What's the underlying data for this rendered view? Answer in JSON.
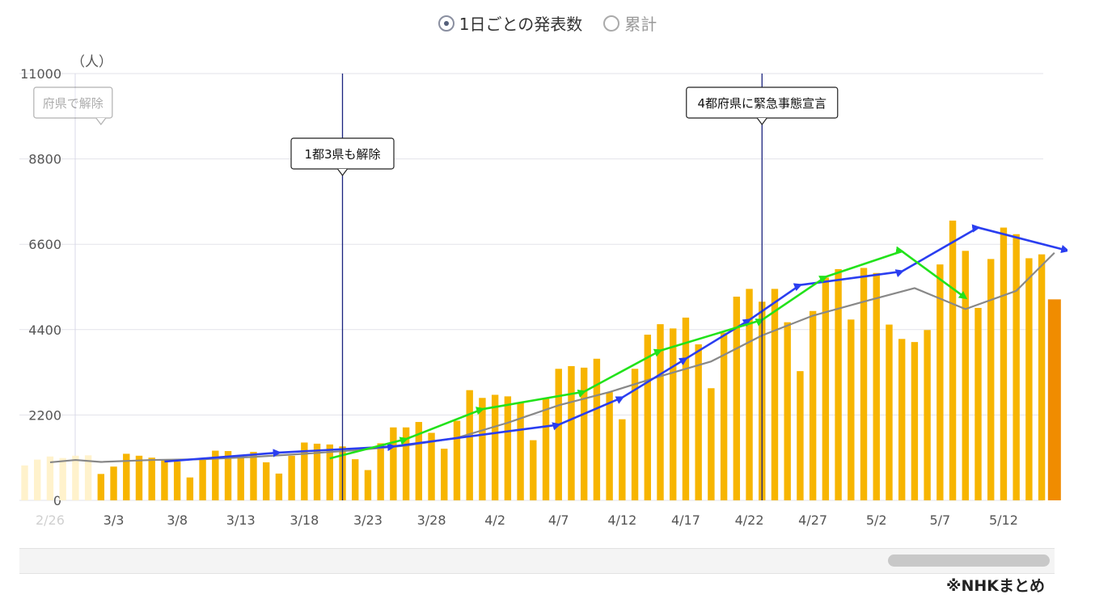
{
  "toggle": {
    "daily_label": "1日ごとの発表数",
    "cumulative_label": "累計",
    "selected": "daily"
  },
  "source_note": "※NHKまとめ",
  "colors": {
    "bar": "#f7b500",
    "bar_faded": "#fff2cc",
    "bar_latest": "#f08c00",
    "average_line": "#888888",
    "blue_trend": "#2a3ef0",
    "green_trend": "#22e21b",
    "event_line": "#1a237e",
    "grid": "#e3e3ea"
  },
  "chart_data": {
    "type": "bar",
    "unit_label": "（人）",
    "ylim": [
      0,
      11000
    ],
    "yticks": [
      0,
      2200,
      4400,
      6600,
      8800,
      11000
    ],
    "start_date": "2/24",
    "xtick_labels": [
      "2/26",
      "3/3",
      "3/8",
      "3/13",
      "3/18",
      "3/23",
      "3/28",
      "4/2",
      "4/7",
      "4/12",
      "4/17",
      "4/22",
      "4/27",
      "5/2",
      "5/7",
      "5/12"
    ],
    "xtick_day_index": [
      2,
      7,
      12,
      17,
      22,
      27,
      32,
      37,
      42,
      47,
      52,
      57,
      62,
      67,
      72,
      77
    ],
    "faded_count": 6,
    "values": [
      900,
      1050,
      1130,
      1090,
      1150,
      1160,
      680,
      870,
      1200,
      1150,
      1100,
      1050,
      1000,
      590,
      1050,
      1280,
      1270,
      1150,
      1250,
      980,
      690,
      1150,
      1490,
      1460,
      1440,
      1390,
      1060,
      780,
      1470,
      1880,
      1880,
      2020,
      1740,
      1330,
      2050,
      2840,
      2640,
      2720,
      2680,
      2510,
      1550,
      2640,
      3390,
      3460,
      3420,
      3650,
      2790,
      2090,
      3390,
      4270,
      4540,
      4430,
      4710,
      4020,
      2890,
      4320,
      5250,
      5450,
      5120,
      5450,
      4590,
      3330,
      4880,
      5740,
      5960,
      4660,
      5990,
      5860,
      4530,
      4160,
      4080,
      4390,
      6080,
      7210,
      6430,
      4960,
      6220,
      7030,
      6860,
      6240,
      6340,
      5180
    ],
    "series": [
      {
        "name": "平均",
        "type": "line",
        "points": [
          [
            2,
            980
          ],
          [
            4,
            1040
          ],
          [
            6,
            990
          ],
          [
            10,
            1040
          ],
          [
            14,
            1060
          ],
          [
            18,
            1120
          ],
          [
            22,
            1200
          ],
          [
            26,
            1290
          ],
          [
            30,
            1410
          ],
          [
            34,
            1610
          ],
          [
            38,
            2000
          ],
          [
            42,
            2450
          ],
          [
            46,
            2790
          ],
          [
            50,
            3200
          ],
          [
            54,
            3580
          ],
          [
            58,
            4250
          ],
          [
            62,
            4760
          ],
          [
            66,
            5120
          ],
          [
            70,
            5470
          ],
          [
            74,
            4930
          ],
          [
            78,
            5400
          ],
          [
            81,
            6380
          ]
        ]
      },
      {
        "name": "",
        "type": "trend",
        "color": "blue",
        "points": [
          [
            11,
            1000
          ],
          [
            20,
            1230
          ],
          [
            29,
            1390
          ],
          [
            42,
            1950
          ],
          [
            47,
            2650
          ],
          [
            52,
            3650
          ],
          [
            57,
            4650
          ],
          [
            61,
            5550
          ],
          [
            69,
            5900
          ],
          [
            75,
            7030
          ],
          [
            82,
            6440
          ]
        ]
      },
      {
        "name": "",
        "type": "trend",
        "color": "green",
        "points": [
          [
            24,
            1080
          ],
          [
            30,
            1580
          ],
          [
            36,
            2350
          ],
          [
            44,
            2800
          ],
          [
            50,
            3860
          ],
          [
            58,
            4650
          ],
          [
            63,
            5760
          ],
          [
            69,
            6420
          ],
          [
            74,
            5220
          ]
        ]
      }
    ],
    "annotations": [
      {
        "label": "1都3県も解除",
        "day": 25
      },
      {
        "label": "4都府県に緊急事態宣言",
        "day": 58
      },
      {
        "label": "府県で解除",
        "day": 6,
        "faded": true
      }
    ]
  }
}
